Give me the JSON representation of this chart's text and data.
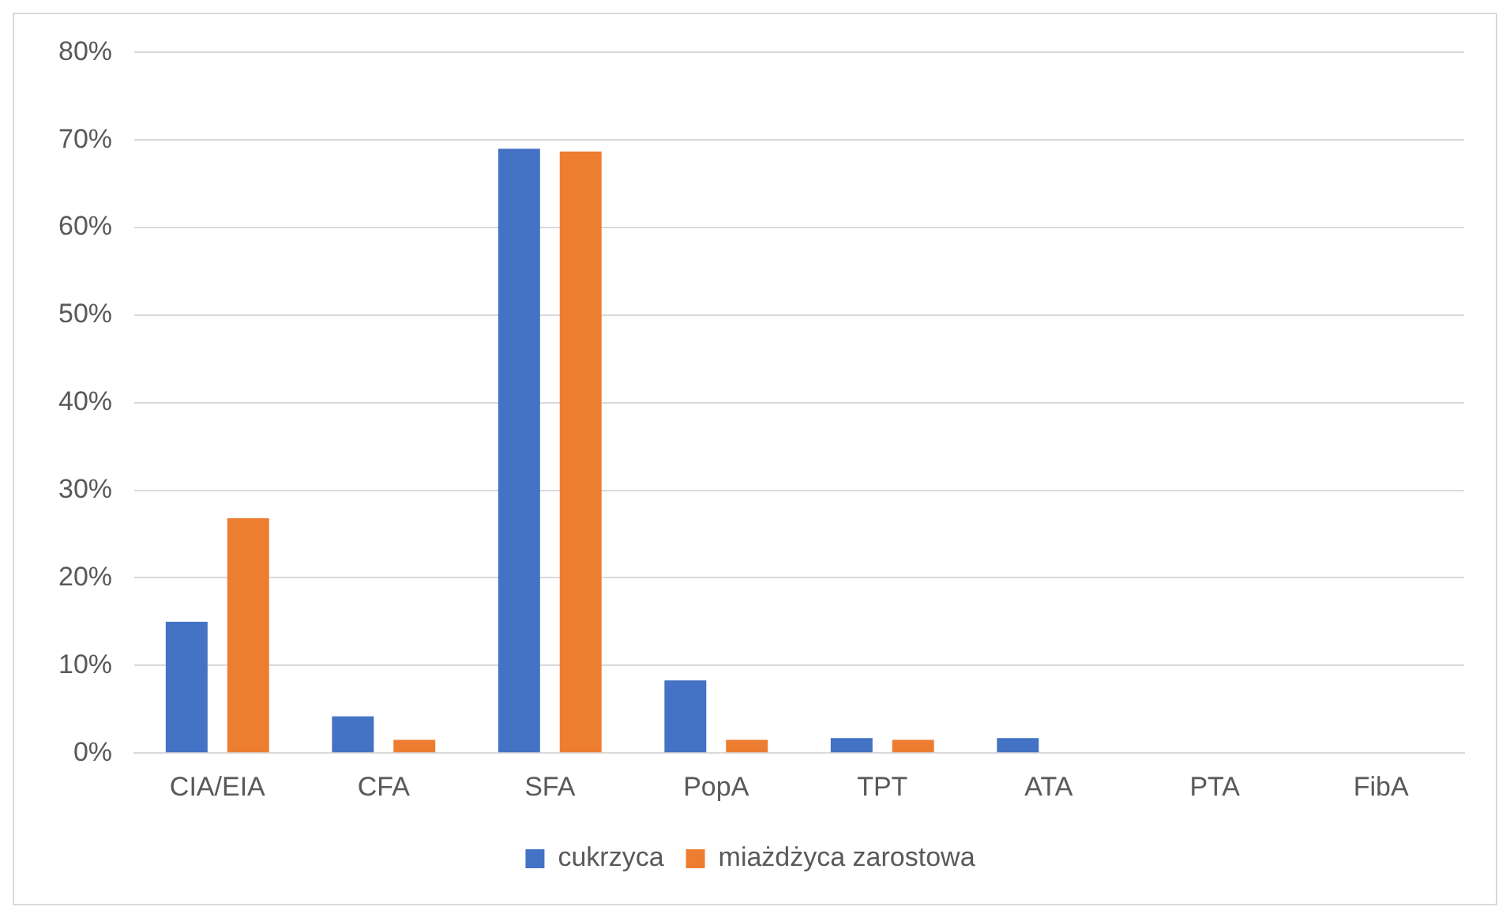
{
  "chart_data": {
    "type": "bar",
    "categories": [
      "CIA/EIA",
      "CFA",
      "SFA",
      "PopA",
      "TPT",
      "ATA",
      "PTA",
      "FibA"
    ],
    "series": [
      {
        "name": "cukrzyca",
        "color": "#4472c4",
        "values": [
          15,
          4.2,
          69,
          8.3,
          1.7,
          1.7,
          0,
          0
        ]
      },
      {
        "name": "miażdżyca zarostowa",
        "color": "#ed7d31",
        "values": [
          26.8,
          1.5,
          68.7,
          1.5,
          1.5,
          0,
          0,
          0
        ]
      }
    ],
    "ylim": [
      0,
      80
    ],
    "yticks": [
      {
        "value": 0,
        "label": "0%"
      },
      {
        "value": 10,
        "label": "10%"
      },
      {
        "value": 20,
        "label": "20%"
      },
      {
        "value": 30,
        "label": "30%"
      },
      {
        "value": 40,
        "label": "40%"
      },
      {
        "value": 50,
        "label": "50%"
      },
      {
        "value": 60,
        "label": "60%"
      },
      {
        "value": 70,
        "label": "70%"
      },
      {
        "value": 80,
        "label": "80%"
      }
    ],
    "grid": "y",
    "legend": "bottom"
  }
}
